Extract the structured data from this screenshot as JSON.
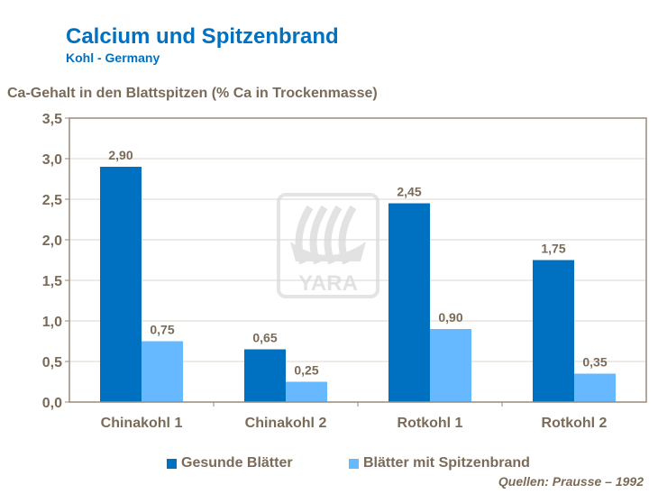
{
  "title": "Calcium und Spitzenbrand",
  "subtitle": "Kohl - Germany",
  "source": "Quellen: Prausse – 1992",
  "watermark": "YARA",
  "chart_data": {
    "type": "bar",
    "title": "Calcium und Spitzenbrand",
    "ylabel": "Ca-Gehalt in den Blattspitzen (% Ca in Trockenmasse)",
    "xlabel": "",
    "ylim": [
      0,
      3.5
    ],
    "yticks": [
      "0,0",
      "0,5",
      "1,0",
      "1,5",
      "2,0",
      "2,5",
      "3,0",
      "3,5"
    ],
    "grid": true,
    "legend": "bottom",
    "categories": [
      "Chinakohl 1",
      "Chinakohl 2",
      "Rotkohl 1",
      "Rotkohl 2"
    ],
    "series": [
      {
        "name": "Gesunde Blätter",
        "color": "#0070c0",
        "values": [
          2.9,
          0.65,
          2.45,
          1.75
        ],
        "labels": [
          "2,90",
          "0,65",
          "2,45",
          "1,75"
        ]
      },
      {
        "name": "Blätter mit Spitzenbrand",
        "color": "#66b8ff",
        "values": [
          0.75,
          0.25,
          0.9,
          0.35
        ],
        "labels": [
          "0,75",
          "0,25",
          "0,90",
          "0,35"
        ]
      }
    ]
  }
}
